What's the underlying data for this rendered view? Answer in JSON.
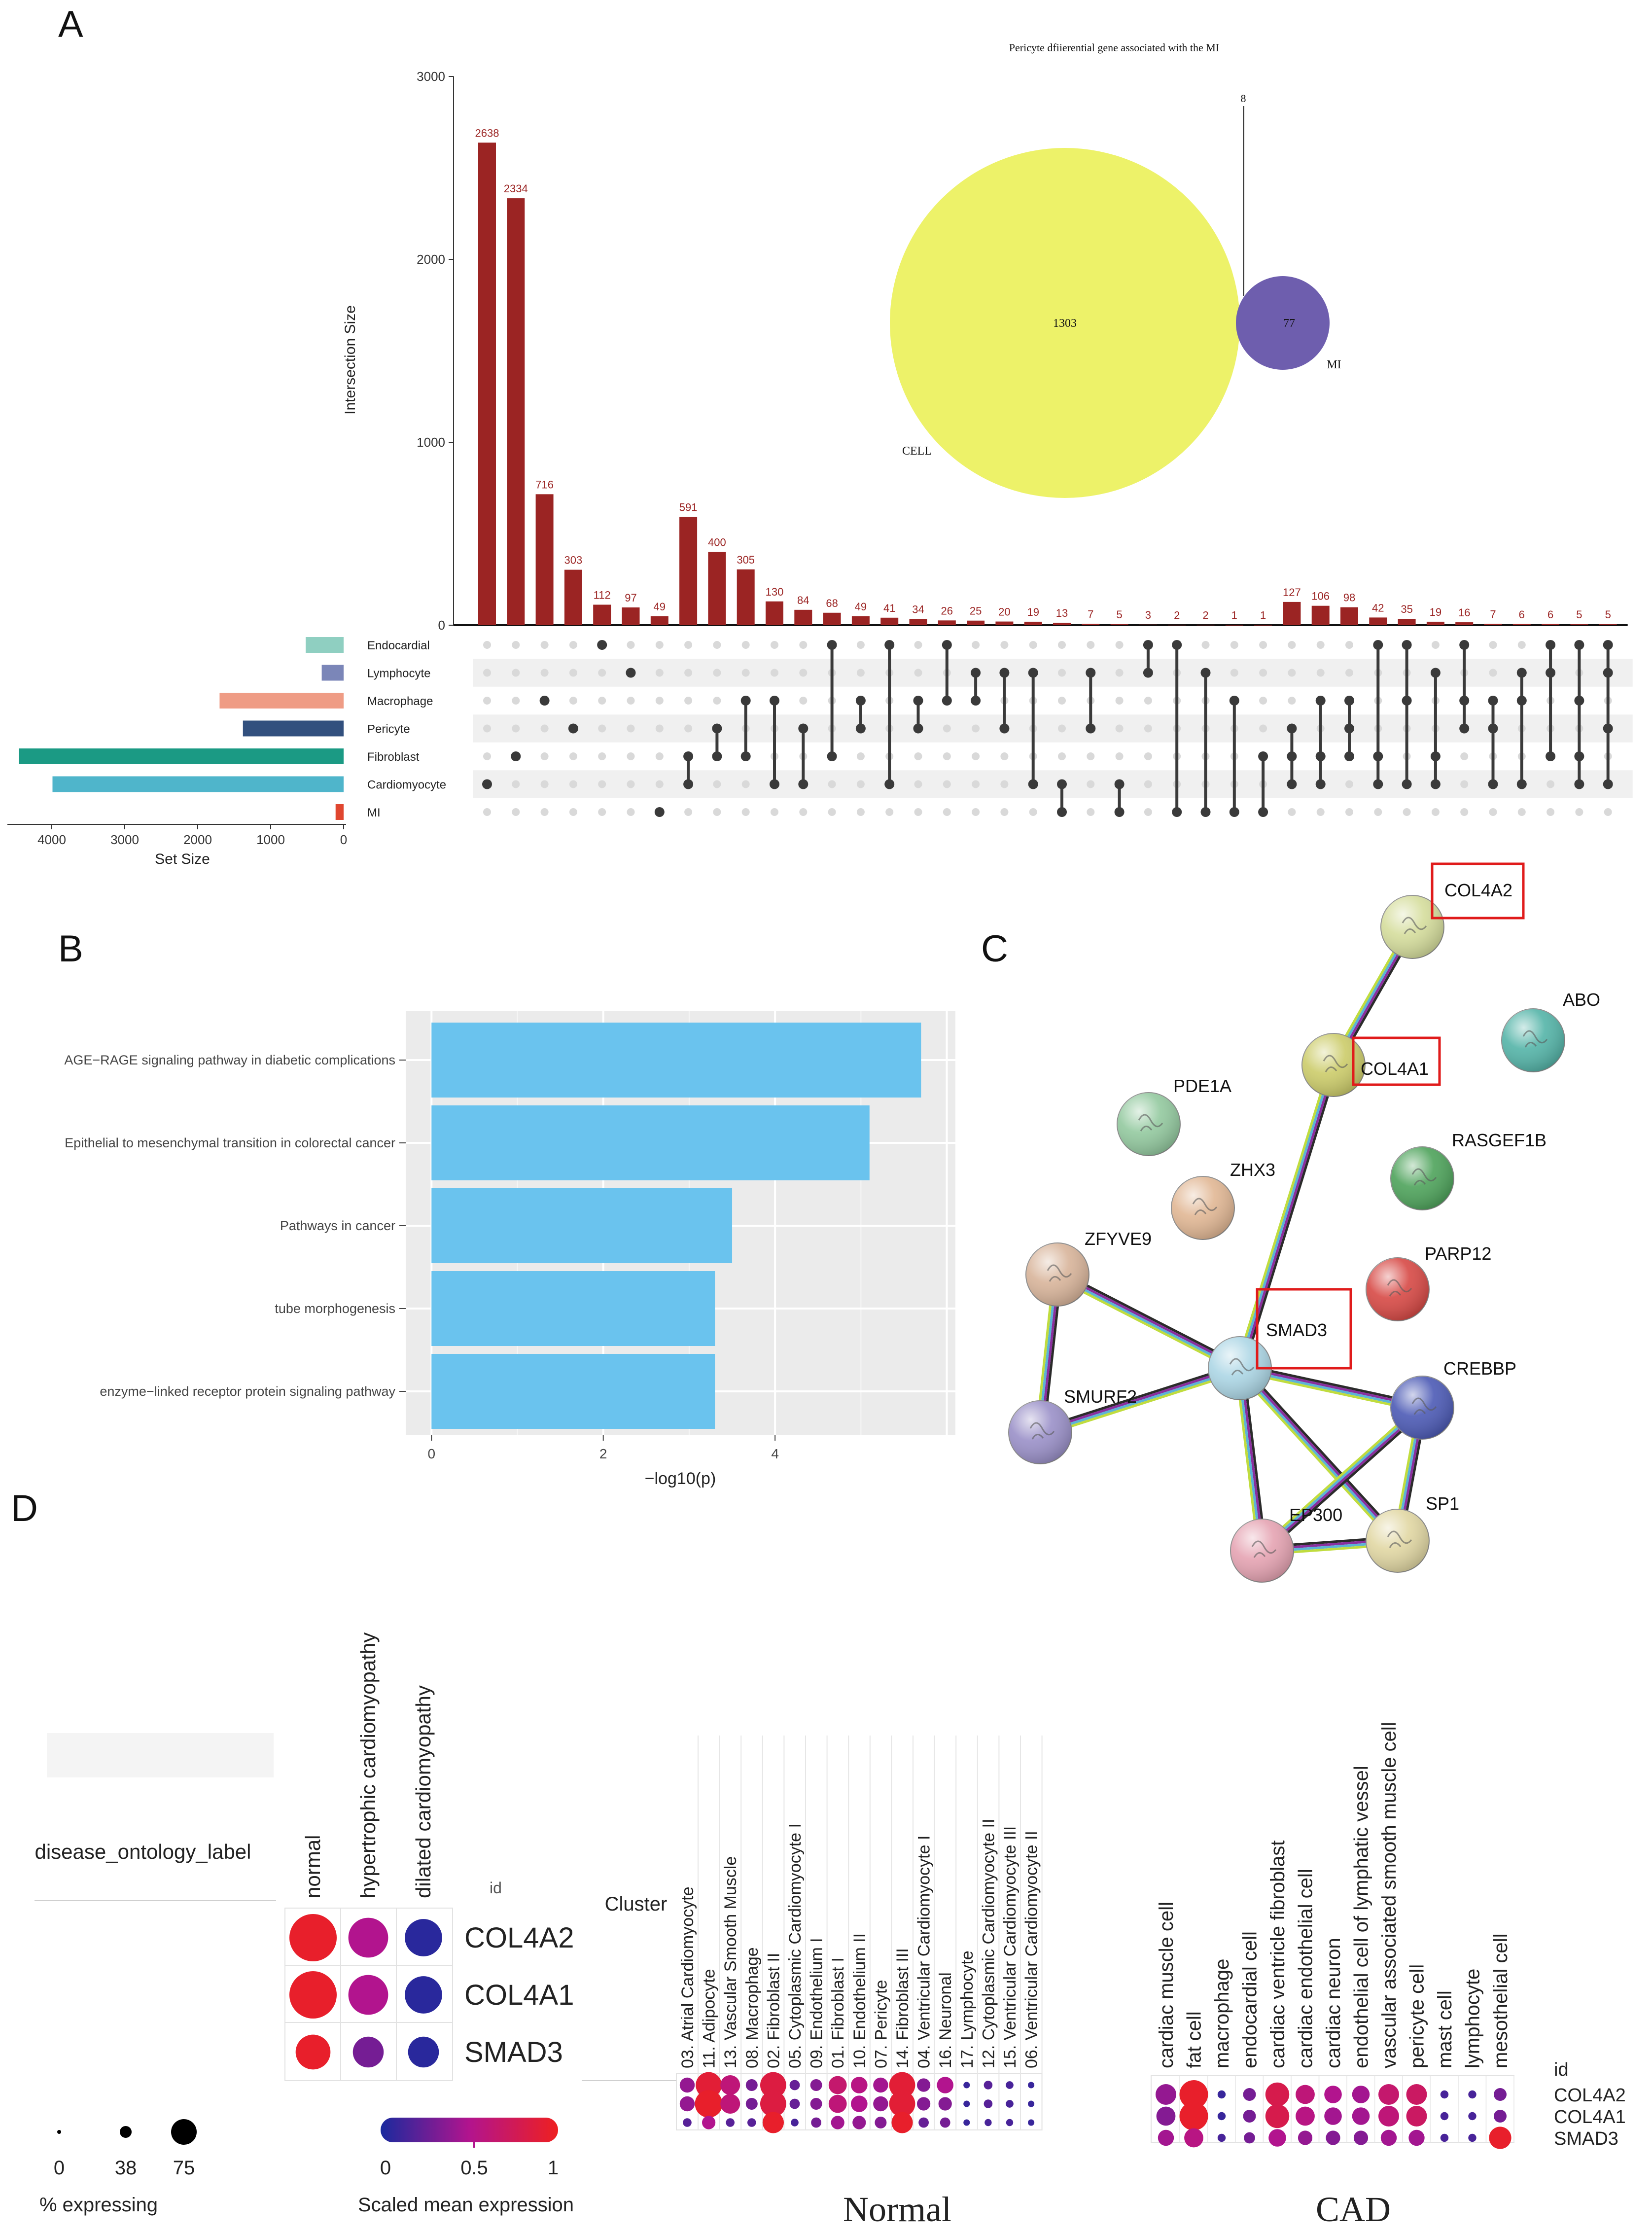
{
  "panels": {
    "a": "A",
    "b": "B",
    "c": "C",
    "d": "D"
  },
  "chart_data": [
    {
      "panel": "A",
      "type": "bar",
      "subtype": "upset",
      "ylabel": "Intersection Size",
      "ylim": [
        0,
        3000
      ],
      "yticks": [
        "0",
        "1000",
        "2000",
        "3000"
      ],
      "intersections": [
        {
          "value": 2638,
          "label": "2638",
          "sets": [
            5
          ]
        },
        {
          "value": 2334,
          "label": "2334",
          "sets": [
            4
          ]
        },
        {
          "value": 716,
          "label": "716",
          "sets": [
            2
          ]
        },
        {
          "value": 303,
          "label": "303",
          "sets": [
            3
          ]
        },
        {
          "value": 112,
          "label": "112",
          "sets": [
            0
          ]
        },
        {
          "value": 97,
          "label": "97",
          "sets": [
            1
          ]
        },
        {
          "value": 49,
          "label": "49",
          "sets": [
            6
          ]
        },
        {
          "value": 591,
          "label": "591",
          "sets": [
            4,
            5
          ]
        },
        {
          "value": 400,
          "label": "400",
          "sets": [
            3,
            4
          ]
        },
        {
          "value": 305,
          "label": "305",
          "sets": [
            2,
            4
          ]
        },
        {
          "value": 130,
          "label": "130",
          "sets": [
            2,
            5
          ]
        },
        {
          "value": 84,
          "label": "84",
          "sets": [
            3,
            5
          ]
        },
        {
          "value": 68,
          "label": "68",
          "sets": [
            0,
            4
          ]
        },
        {
          "value": 49,
          "label": "49",
          "sets": [
            2,
            3
          ]
        },
        {
          "value": 41,
          "label": "41",
          "sets": [
            0,
            5
          ]
        },
        {
          "value": 34,
          "label": "34",
          "sets": [
            2,
            3
          ]
        },
        {
          "value": 26,
          "label": "26",
          "sets": [
            0,
            2
          ]
        },
        {
          "value": 25,
          "label": "25",
          "sets": [
            1,
            2
          ]
        },
        {
          "value": 20,
          "label": "20",
          "sets": [
            1,
            3
          ]
        },
        {
          "value": 19,
          "label": "19",
          "sets": [
            1,
            5
          ]
        },
        {
          "value": 13,
          "label": "13",
          "sets": [
            5,
            6
          ]
        },
        {
          "value": 7,
          "label": "7",
          "sets": [
            1,
            3
          ]
        },
        {
          "value": 5,
          "label": "5",
          "sets": [
            5,
            6
          ]
        },
        {
          "value": 3,
          "label": "3",
          "sets": [
            0,
            1
          ]
        },
        {
          "value": 2,
          "label": "2",
          "sets": [
            0,
            6
          ]
        },
        {
          "value": 2,
          "label": "2",
          "sets": [
            1,
            6
          ]
        },
        {
          "value": 1,
          "label": "1",
          "sets": [
            2,
            6
          ]
        },
        {
          "value": 1,
          "label": "1",
          "sets": [
            4,
            6
          ]
        },
        {
          "value": 127,
          "label": "127",
          "sets": [
            3,
            4,
            5
          ]
        },
        {
          "value": 106,
          "label": "106",
          "sets": [
            2,
            4,
            5
          ]
        },
        {
          "value": 98,
          "label": "98",
          "sets": [
            2,
            3,
            4
          ]
        },
        {
          "value": 42,
          "label": "42",
          "sets": [
            0,
            4,
            5
          ]
        },
        {
          "value": 35,
          "label": "35",
          "sets": [
            0,
            2,
            5
          ]
        },
        {
          "value": 19,
          "label": "19",
          "sets": [
            1,
            4,
            5
          ]
        },
        {
          "value": 16,
          "label": "16",
          "sets": [
            0,
            2,
            3
          ]
        },
        {
          "value": 7,
          "label": "7",
          "sets": [
            2,
            3,
            5
          ]
        },
        {
          "value": 6,
          "label": "6",
          "sets": [
            1,
            2,
            5
          ]
        },
        {
          "value": 6,
          "label": "6",
          "sets": [
            0,
            1,
            4
          ]
        },
        {
          "value": 5,
          "label": "5",
          "sets": [
            0,
            2,
            4,
            5
          ]
        },
        {
          "value": 5,
          "label": "5",
          "sets": [
            0,
            1,
            3,
            5
          ]
        }
      ],
      "sets": [
        {
          "name": "Endocardial",
          "size": 520,
          "color": "#8fcfc1"
        },
        {
          "name": "Lymphocyte",
          "size": 300,
          "color": "#7b86b8"
        },
        {
          "name": "Macrophage",
          "size": 1700,
          "color": "#ef9c85"
        },
        {
          "name": "Pericyte",
          "size": 1380,
          "color": "#32507e"
        },
        {
          "name": "Fibroblast",
          "size": 4450,
          "color": "#1b9a84"
        },
        {
          "name": "Cardiomyocyte",
          "size": 3990,
          "color": "#4fb5cb"
        },
        {
          "name": "MI",
          "size": 110,
          "color": "#e0462f"
        }
      ],
      "set_size_label": "Set Size",
      "set_size_ticks": [
        "4000",
        "3000",
        "2000",
        "1000",
        "0"
      ],
      "bar_color": "#9b2423",
      "dot_color": "#3a3a3a",
      "venn": {
        "title": "Pericyte dfiierential gene associated with the MI",
        "left": {
          "name": "CELL",
          "value": "1303",
          "color": "#edf269"
        },
        "right": {
          "name": "MI",
          "value": "77",
          "color": "#6e5eae"
        },
        "overlap": "8"
      }
    },
    {
      "panel": "B",
      "type": "bar",
      "orientation": "horizontal",
      "categories": [
        "AGE−RAGE signaling pathway in diabetic complications",
        "Epithelial to mesenchymal transition in colorectal cancer",
        "Pathways in cancer",
        "tube morphogenesis",
        "enzyme−linked receptor protein signaling pathway"
      ],
      "values": [
        5.7,
        5.1,
        3.5,
        3.3,
        3.3
      ],
      "xlabel": "−log10(p)",
      "xlim": [
        -0.3,
        6.1
      ],
      "xticks": [
        "0",
        "2",
        "4"
      ],
      "bar_color": "#6ac3ee",
      "background": "#ebebeb"
    },
    {
      "panel": "C",
      "type": "network",
      "nodes": [
        {
          "name": "COL4A2",
          "color": "#d5dd9c",
          "highlighted": true
        },
        {
          "name": "ABO",
          "color": "#54b4a8",
          "highlighted": false
        },
        {
          "name": "COL4A1",
          "color": "#cccc6a",
          "highlighted": true
        },
        {
          "name": "PDE1A",
          "color": "#93c99f",
          "highlighted": false
        },
        {
          "name": "RASGEF1B",
          "color": "#4ea35b",
          "highlighted": false
        },
        {
          "name": "ZHX3",
          "color": "#e1b794",
          "highlighted": false
        },
        {
          "name": "PARP12",
          "color": "#d74945",
          "highlighted": false
        },
        {
          "name": "ZFYVE9",
          "color": "#d8b49a",
          "highlighted": false
        },
        {
          "name": "SMAD3",
          "color": "#acd6e5",
          "highlighted": true
        },
        {
          "name": "CREBBP",
          "color": "#4c5ab5",
          "highlighted": false
        },
        {
          "name": "SMURF2",
          "color": "#9a90c8",
          "highlighted": false
        },
        {
          "name": "EP300",
          "color": "#e5a3b2",
          "highlighted": false
        },
        {
          "name": "SP1",
          "color": "#e1d7a3",
          "highlighted": false
        }
      ],
      "edges": [
        [
          "COL4A2",
          "COL4A1"
        ],
        [
          "COL4A1",
          "SMAD3"
        ],
        [
          "ZFYVE9",
          "SMAD3"
        ],
        [
          "ZFYVE9",
          "SMURF2"
        ],
        [
          "SMURF2",
          "SMAD3"
        ],
        [
          "SMAD3",
          "CREBBP"
        ],
        [
          "SMAD3",
          "EP300"
        ],
        [
          "SMAD3",
          "SP1"
        ],
        [
          "CREBBP",
          "EP300"
        ],
        [
          "CREBBP",
          "SP1"
        ],
        [
          "EP300",
          "SP1"
        ]
      ]
    },
    {
      "panel": "D",
      "type": "scatter",
      "subtype": "dot plot",
      "genes": [
        "COL4A2",
        "COL4A1",
        "SMAD3"
      ],
      "disease": {
        "row_label": "disease_ontology_label",
        "id_label": "id",
        "columns": [
          "normal",
          "hypertrophic cardiomyopathy",
          "dilated cardiomyopathy"
        ],
        "scaled_mean": [
          [
            0.95,
            0.5,
            0.05
          ],
          [
            0.95,
            0.5,
            0.05
          ],
          [
            0.95,
            0.3,
            0.05
          ]
        ],
        "pct_expressing": [
          [
            75,
            60,
            55
          ],
          [
            75,
            60,
            55
          ],
          [
            50,
            42,
            42
          ]
        ]
      },
      "normal": {
        "title": "Normal",
        "axis_label": "Cluster",
        "columns": [
          "03. Atrial Cardiomyocyte",
          "11. Adipocyte",
          "13. Vascular Smooth Muscle",
          "08. Macrophage",
          "02. Fibroblast II",
          "05. Cytoplasmic Cardiomyocyte I",
          "09. Endothelium I",
          "01. Fibroblast I",
          "10. Endothelium II",
          "07. Pericyte",
          "14. Fibroblast III",
          "04. Ventricular Cardiomyocyte I",
          "16. Neuronal",
          "17. Lymphocyte",
          "12. Cytoplasmic Cardiomyocyte II",
          "15. Ventricular Cardiomyocyte III",
          "06. Ventricular Cardiomyocyte II"
        ],
        "scaled_mean": [
          [
            0.4,
            0.9,
            0.6,
            0.3,
            0.85,
            0.25,
            0.35,
            0.65,
            0.55,
            0.45,
            0.9,
            0.35,
            0.5,
            0.1,
            0.2,
            0.15,
            0.1
          ],
          [
            0.4,
            0.95,
            0.6,
            0.3,
            0.85,
            0.25,
            0.35,
            0.6,
            0.5,
            0.4,
            0.9,
            0.35,
            0.35,
            0.1,
            0.2,
            0.15,
            0.1
          ],
          [
            0.2,
            0.5,
            0.2,
            0.2,
            0.95,
            0.15,
            0.3,
            0.45,
            0.4,
            0.35,
            0.95,
            0.25,
            0.3,
            0.1,
            0.15,
            0.15,
            0.1
          ]
        ],
        "pct_expressing": [
          [
            35,
            70,
            50,
            25,
            70,
            20,
            25,
            45,
            40,
            35,
            70,
            30,
            40,
            8,
            15,
            12,
            8
          ],
          [
            35,
            75,
            50,
            25,
            70,
            20,
            25,
            45,
            40,
            35,
            70,
            30,
            30,
            8,
            15,
            12,
            8
          ],
          [
            15,
            30,
            15,
            15,
            55,
            12,
            20,
            30,
            30,
            25,
            55,
            20,
            20,
            8,
            10,
            10,
            8
          ]
        ]
      },
      "cad": {
        "title": "CAD",
        "id_label": "id",
        "columns": [
          "cardiac muscle cell",
          "fat cell",
          "macrophage",
          "endocardial cell",
          "cardiac ventricle fibroblast",
          "cardiac endothelial cell",
          "cardiac neuron",
          "endothelial cell of lymphatic vessel",
          "vascular associated smooth muscle cell",
          "pericyte cell",
          "mast cell",
          "lymphocyte",
          "mesothelial cell"
        ],
        "scaled_mean": [
          [
            0.4,
            0.95,
            0.1,
            0.3,
            0.8,
            0.6,
            0.5,
            0.45,
            0.65,
            0.7,
            0.15,
            0.15,
            0.3
          ],
          [
            0.35,
            0.95,
            0.1,
            0.3,
            0.8,
            0.55,
            0.45,
            0.45,
            0.6,
            0.7,
            0.15,
            0.15,
            0.3
          ],
          [
            0.45,
            0.55,
            0.15,
            0.3,
            0.5,
            0.4,
            0.35,
            0.35,
            0.45,
            0.45,
            0.15,
            0.15,
            0.95
          ]
        ],
        "pct_expressing": [
          [
            50,
            75,
            10,
            25,
            60,
            45,
            40,
            40,
            50,
            50,
            10,
            10,
            25
          ],
          [
            45,
            75,
            10,
            25,
            60,
            45,
            40,
            40,
            50,
            50,
            10,
            10,
            25
          ],
          [
            35,
            45,
            10,
            20,
            40,
            30,
            30,
            30,
            35,
            35,
            10,
            10,
            55
          ]
        ]
      },
      "size_legend": {
        "title": "% expressing",
        "values": [
          "0",
          "38",
          "75"
        ]
      },
      "color_legend": {
        "title": "Scaled mean expression",
        "ticks": [
          "0",
          "0.5",
          "1"
        ]
      }
    }
  ]
}
